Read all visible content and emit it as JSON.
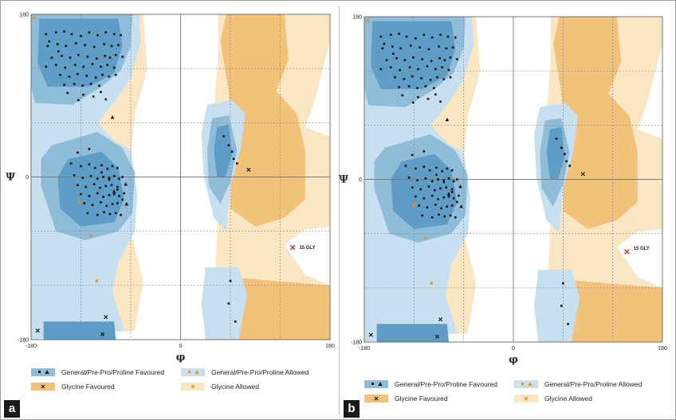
{
  "figure": {
    "colors": {
      "general_favoured": "#8fbcd9",
      "general_favoured_core": "#5d9dc6",
      "general_allowed": "#c7e0ef",
      "glycine_favoured": "#f3c27a",
      "glycine_allowed": "#fbe6c4",
      "point": "#111111",
      "outlier": "#e0202e",
      "allowed_marker": "#f08a1c"
    },
    "legend": {
      "general_favoured": "General/Pre-Pro/Proline Favoured",
      "general_allowed": "General/Pre-Pro/Proline Allowed",
      "glycine_favoured": "Glycine Favoured",
      "glycine_allowed": "Glycine Allowed"
    }
  },
  "chart_data": [
    {
      "panel_label": "a",
      "type": "scatter",
      "xlabel": "φ",
      "ylabel": "Ψ",
      "xlim": [
        -180,
        180
      ],
      "ylim": [
        -180,
        180
      ],
      "x_ticks": [
        "-180",
        "0",
        "180"
      ],
      "y_ticks": [
        "180",
        "0",
        "-180"
      ],
      "grid": true,
      "annotation": {
        "text": "15 GLY",
        "x": 143,
        "y": -78
      },
      "series": [
        {
          "name": "General/Pre-Pro/Proline Favoured",
          "x": [
            -162,
            -150,
            -140,
            -131,
            -120,
            -110,
            -100,
            -90,
            -80,
            -72,
            -160,
            -148,
            -138,
            -126,
            -115,
            -104,
            -92,
            -83,
            -75,
            -155,
            -143,
            -133,
            -123,
            -112,
            -101,
            -91,
            -85,
            -78,
            -70,
            -162,
            -150,
            -139,
            -127,
            -117,
            -106,
            -96,
            -88,
            -80,
            -145,
            -134,
            -124,
            -113,
            -102,
            -94,
            -86,
            -78,
            -140,
            -128,
            -118,
            -108,
            -98,
            -136,
            -117,
            -96,
            -158,
            -147,
            -123,
            -105,
            -90,
            -132,
            -120,
            -110,
            -103,
            -95,
            -88,
            -82,
            -76,
            -128,
            -118,
            -108,
            -100,
            -93,
            -86,
            -80,
            -74,
            -70,
            -124,
            -114,
            -104,
            -97,
            -90,
            -83,
            -76,
            -120,
            -110,
            -100,
            -93,
            -86,
            -80,
            -74,
            -68,
            -116,
            -106,
            -96,
            -89,
            -82,
            -76,
            -112,
            -100,
            -92,
            -85,
            -78,
            -72,
            -124,
            -110,
            -95,
            -86,
            -76,
            -70,
            52,
            58,
            62,
            64,
            68,
            60,
            58,
            66
          ],
          "y": [
            158,
            160,
            161,
            158,
            156,
            160,
            157,
            160,
            158,
            157,
            145,
            147,
            145,
            148,
            146,
            144,
            147,
            145,
            146,
            132,
            134,
            132,
            135,
            133,
            131,
            134,
            132,
            135,
            133,
            122,
            124,
            121,
            124,
            122,
            125,
            122,
            124,
            121,
            113,
            111,
            114,
            112,
            110,
            113,
            111,
            113,
            102,
            103,
            101,
            103,
            101,
            93,
            91,
            94,
            150,
            139,
            85,
            89,
            86,
            15,
            12,
            14,
            10,
            13,
            9,
            12,
            10,
            2,
            -1,
            1,
            -2,
            0,
            -1,
            1,
            -2,
            0,
            -9,
            -11,
            -8,
            -12,
            -10,
            -9,
            -11,
            -19,
            -21,
            -18,
            -22,
            -20,
            -19,
            -21,
            -18,
            -29,
            -31,
            -28,
            -32,
            -30,
            -29,
            -40,
            -42,
            -39,
            -41,
            -40,
            -42,
            27,
            31,
            5,
            -3,
            -14,
            -25,
            45,
            35,
            28,
            20,
            15,
            -115,
            -140,
            -160
          ]
        },
        {
          "name": "General/Pre-Pro/Proline Allowed",
          "x": [
            -122,
            -108,
            -101
          ],
          "y": [
            -28,
            -65,
            -115
          ]
        },
        {
          "name": "Glycine Favoured",
          "x": [
            -172,
            82,
            -90,
            -94
          ],
          "y": [
            -170,
            8,
            -155,
            -174
          ]
        },
        {
          "name": "Glycine Allowed",
          "x": [
            -176
          ],
          "y": [
            176
          ]
        },
        {
          "name": "Outlier",
          "x": [
            135
          ],
          "y": [
            -78
          ]
        },
        {
          "name": "Favoured triangles",
          "x": [
            -82,
            -80,
            -66,
            -65
          ],
          "y": [
            66,
            -16,
            -8,
            -30
          ]
        }
      ]
    },
    {
      "panel_label": "b",
      "type": "scatter",
      "xlabel": "φ",
      "ylabel": "Ψ",
      "xlim": [
        -180,
        180
      ],
      "ylim": [
        -180,
        180
      ],
      "x_ticks": [
        "-180",
        "0",
        "180"
      ],
      "y_ticks": [
        "180",
        "0",
        "-180"
      ],
      "grid": true,
      "annotation": {
        "text": "15 GLY",
        "x": 145,
        "y": -76
      },
      "series": [
        {
          "name": "General/Pre-Pro/Proline Favoured",
          "x": [
            -160,
            -148,
            -138,
            -129,
            -118,
            -108,
            -98,
            -88,
            -79,
            -70,
            -158,
            -146,
            -136,
            -124,
            -113,
            -102,
            -90,
            -81,
            -73,
            -153,
            -141,
            -131,
            -121,
            -110,
            -99,
            -89,
            -83,
            -76,
            -68,
            -160,
            -148,
            -137,
            -125,
            -115,
            -104,
            -94,
            -86,
            -78,
            -143,
            -132,
            -122,
            -111,
            -100,
            -92,
            -84,
            -76,
            -138,
            -126,
            -116,
            -106,
            -96,
            -134,
            -115,
            -94,
            -156,
            -145,
            -121,
            -103,
            -88,
            -130,
            -118,
            -108,
            -101,
            -93,
            -86,
            -80,
            -74,
            -126,
            -116,
            -106,
            -98,
            -91,
            -84,
            -78,
            -72,
            -68,
            -122,
            -112,
            -102,
            -95,
            -88,
            -81,
            -74,
            -118,
            -108,
            -98,
            -91,
            -84,
            -78,
            -72,
            -66,
            -114,
            -104,
            -94,
            -87,
            -80,
            -74,
            -110,
            -98,
            -90,
            -83,
            -76,
            -70,
            -122,
            -108,
            -93,
            -84,
            -74,
            -68,
            52,
            58,
            62,
            64,
            68,
            60,
            58,
            66
          ],
          "y": [
            158,
            160,
            161,
            158,
            156,
            160,
            157,
            160,
            158,
            157,
            145,
            147,
            145,
            148,
            146,
            144,
            147,
            145,
            146,
            132,
            134,
            132,
            135,
            133,
            131,
            134,
            132,
            135,
            133,
            122,
            124,
            121,
            124,
            122,
            125,
            122,
            124,
            121,
            113,
            111,
            114,
            112,
            110,
            113,
            111,
            113,
            102,
            103,
            101,
            103,
            101,
            93,
            91,
            94,
            150,
            139,
            85,
            89,
            86,
            15,
            12,
            14,
            10,
            13,
            9,
            12,
            10,
            2,
            -1,
            1,
            -2,
            0,
            -1,
            1,
            -2,
            0,
            -9,
            -11,
            -8,
            -12,
            -10,
            -9,
            -11,
            -19,
            -21,
            -18,
            -22,
            -20,
            -19,
            -21,
            -18,
            -29,
            -31,
            -28,
            -32,
            -30,
            -29,
            -40,
            -42,
            -39,
            -41,
            -40,
            -42,
            27,
            31,
            5,
            -3,
            -14,
            -25,
            45,
            35,
            28,
            20,
            15,
            -115,
            -140,
            -160
          ]
        },
        {
          "name": "General/Pre-Pro/Proline Allowed",
          "x": [
            -120,
            -106,
            -99
          ],
          "y": [
            -28,
            -65,
            -115
          ]
        },
        {
          "name": "Glycine Favoured",
          "x": [
            -172,
            84,
            -88,
            -92
          ],
          "y": [
            -172,
            6,
            -155,
            -174
          ]
        },
        {
          "name": "Glycine Allowed",
          "x": [
            -176
          ],
          "y": [
            176
          ]
        },
        {
          "name": "Outlier",
          "x": [
            137
          ],
          "y": [
            -80
          ]
        },
        {
          "name": "Favoured triangles",
          "x": [
            -80,
            -78,
            -64,
            -63
          ],
          "y": [
            66,
            -16,
            -8,
            -30
          ]
        }
      ]
    }
  ]
}
